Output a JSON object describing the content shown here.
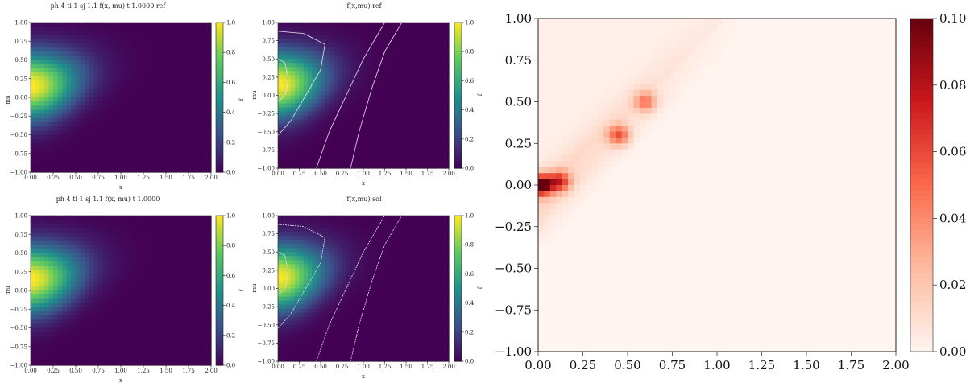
{
  "colors": {
    "viridis_dark": "#440154",
    "viridis_mid": "#21918c",
    "viridis_bright": "#fde725",
    "reds_light": "#fff5f0",
    "reds_dark": "#67000d",
    "contour": "#e8e0f0"
  },
  "chart_data": [
    {
      "id": "p1",
      "type": "heatmap",
      "colormap": "viridis",
      "title": "ph 4 ti 1 sj 1.1 f(x, mu)  t 1.0000  ref",
      "xlabel": "x",
      "ylabel": "mu",
      "colorbar_label": "f",
      "xlim": [
        0,
        2
      ],
      "ylim": [
        -1,
        1
      ],
      "clim": [
        0,
        1
      ],
      "xticks": [
        "0.00",
        "0.25",
        "0.50",
        "0.75",
        "1.00",
        "1.25",
        "1.50",
        "1.75",
        "2.00"
      ],
      "yticks": [
        "1.00",
        "0.75",
        "0.50",
        "0.25",
        "0.00",
        "−0.25",
        "−0.50",
        "−0.75",
        "−1.00"
      ],
      "cbar_ticks": [
        "1.0",
        "0.8",
        "0.6",
        "0.4",
        "0.2",
        "0.0"
      ],
      "peak": {
        "x": 0.0,
        "mu": 0.15,
        "value": 1.0
      },
      "contours": false
    },
    {
      "id": "p2",
      "type": "heatmap",
      "colormap": "viridis",
      "title": "f(x,mu) ref",
      "xlabel": "x",
      "ylabel": "mu",
      "colorbar_label": "f",
      "xlim": [
        0,
        2
      ],
      "ylim": [
        -1,
        1
      ],
      "clim": [
        0,
        1
      ],
      "xticks": [
        "0.00",
        "0.25",
        "0.50",
        "0.75",
        "1.00",
        "1.25",
        "1.50",
        "1.75",
        "2.00"
      ],
      "yticks": [
        "1.00",
        "0.75",
        "0.50",
        "0.25",
        "0.00",
        "−0.25",
        "−0.50",
        "−0.75",
        "−1.00"
      ],
      "cbar_ticks": [
        "1.0",
        "0.8",
        "0.6",
        "0.4",
        "0.2",
        "0.0"
      ],
      "peak": {
        "x": 0.0,
        "mu": 0.15,
        "value": 1.0
      },
      "contours": true
    },
    {
      "id": "p3",
      "type": "heatmap",
      "colormap": "viridis",
      "title": "ph 4 ti 1 sj 1.1 f(x, mu)  t 1.0000",
      "xlabel": "x",
      "ylabel": "mu",
      "colorbar_label": "f",
      "xlim": [
        0,
        2
      ],
      "ylim": [
        -1,
        1
      ],
      "clim": [
        0,
        1
      ],
      "xticks": [
        "0.00",
        "0.25",
        "0.50",
        "0.75",
        "1.00",
        "1.25",
        "1.50",
        "1.75",
        "2.00"
      ],
      "yticks": [
        "1.00",
        "0.75",
        "0.50",
        "0.25",
        "0.00",
        "−0.25",
        "−0.50",
        "−0.75",
        "−1.00"
      ],
      "cbar_ticks": [
        "1.0",
        "0.8",
        "0.6",
        "0.4",
        "0.2",
        "0.0"
      ],
      "peak": {
        "x": 0.0,
        "mu": 0.15,
        "value": 1.0
      },
      "contours": false
    },
    {
      "id": "p4",
      "type": "heatmap",
      "colormap": "viridis",
      "title": "f(x,mu) sol",
      "xlabel": "x",
      "ylabel": "mu",
      "colorbar_label": "f",
      "xlim": [
        0,
        2
      ],
      "ylim": [
        -1,
        1
      ],
      "clim": [
        0,
        1
      ],
      "xticks": [
        "0.00",
        "0.25",
        "0.50",
        "0.75",
        "1.00",
        "1.25",
        "1.50",
        "1.75",
        "2.00"
      ],
      "yticks": [
        "1.00",
        "0.75",
        "0.50",
        "0.25",
        "0.00",
        "−0.25",
        "−0.50",
        "−0.75",
        "−1.00"
      ],
      "cbar_ticks": [
        "1.0",
        "0.8",
        "0.6",
        "0.4",
        "0.2",
        "0.0"
      ],
      "peak": {
        "x": 0.0,
        "mu": 0.15,
        "value": 1.0
      },
      "contours": true
    },
    {
      "id": "p5",
      "type": "heatmap",
      "colormap": "Reds",
      "title": "",
      "xlabel": "",
      "ylabel": "",
      "xlim": [
        0,
        2
      ],
      "ylim": [
        -1,
        1
      ],
      "clim": [
        0,
        0.1
      ],
      "xticks": [
        "0.00",
        "0.25",
        "0.50",
        "0.75",
        "1.00",
        "1.25",
        "1.50",
        "1.75",
        "2.00"
      ],
      "yticks": [
        "1.00",
        "0.75",
        "0.50",
        "0.25",
        "0.00",
        "−0.25",
        "−0.50",
        "−0.75",
        "−1.00"
      ],
      "cbar_ticks": [
        "0.10",
        "0.08",
        "0.06",
        "0.04",
        "0.02",
        "0.00"
      ],
      "hotspots": [
        {
          "x": 0.02,
          "mu": 0.0,
          "value": 0.1
        },
        {
          "x": 0.12,
          "mu": 0.02,
          "value": 0.06
        },
        {
          "x": 0.45,
          "mu": 0.3,
          "value": 0.05
        },
        {
          "x": 0.6,
          "mu": 0.5,
          "value": 0.04
        }
      ],
      "band": "diagonal error band from (0, -0.1) to (1.0, 1.0)"
    }
  ]
}
